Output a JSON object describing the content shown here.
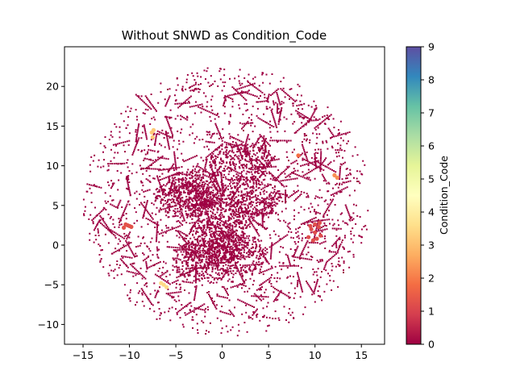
{
  "chart_data": {
    "type": "scatter",
    "title": "Without SNWD as Condition_Code",
    "xlabel": "",
    "ylabel": "",
    "xlim": [
      -17,
      17.5
    ],
    "ylim": [
      -12.5,
      25
    ],
    "x_ticks": [
      -15,
      -10,
      -5,
      0,
      5,
      10,
      15
    ],
    "y_ticks": [
      -10,
      -5,
      0,
      5,
      10,
      15,
      20
    ],
    "x_tick_labels": [
      "−15",
      "−10",
      "−5",
      "0",
      "5",
      "10",
      "15"
    ],
    "y_tick_labels": [
      "−10",
      "−5",
      "0",
      "5",
      "10",
      "15",
      "20"
    ],
    "grid": false,
    "colormap": "Spectral",
    "colorbar": {
      "label": "Condition_Code",
      "range": [
        0,
        9
      ],
      "ticks": [
        0,
        1,
        2,
        3,
        4,
        5,
        6,
        7,
        8,
        9
      ],
      "tick_labels": [
        "0",
        "1",
        "2",
        "3",
        "4",
        "5",
        "6",
        "7",
        "8",
        "9"
      ],
      "stops": [
        "#9e0142",
        "#d53e4f",
        "#f46d43",
        "#fdae61",
        "#fee08b",
        "#ffffbf",
        "#e6f598",
        "#abdda4",
        "#66c2a5",
        "#3288bd",
        "#5e4fa2"
      ]
    },
    "cloud": {
      "center": [
        0.5,
        5.5
      ],
      "radius_x": 15.5,
      "radius_y": 17,
      "dominant_condition_code": 0
    },
    "clusters": [
      {
        "x": [
          9.3,
          9.6,
          10.0,
          10.4,
          10.6,
          9.8,
          10.2,
          9.5,
          10.5,
          10.0
        ],
        "y": [
          1.0,
          2.0,
          2.6,
          2.3,
          1.2,
          0.6,
          0.8,
          2.4,
          2.8,
          1.6
        ],
        "condition_code": 1.2
      },
      {
        "x": [
          -10.6,
          -10.2,
          -9.8,
          -10.4,
          -10.0
        ],
        "y": [
          2.2,
          2.5,
          2.3,
          2.6,
          2.4
        ],
        "condition_code": 1.3
      },
      {
        "x": [
          12.1,
          12.4
        ],
        "y": [
          8.8,
          8.5
        ],
        "condition_code": 2.3
      },
      {
        "x": [
          -7.6,
          -7.4,
          -7.5
        ],
        "y": [
          14.2,
          14.5,
          13.6
        ],
        "condition_code": 3.2
      },
      {
        "x": [
          -6.6,
          -6.3,
          -6.0
        ],
        "y": [
          -4.8,
          -5.0,
          -5.3
        ],
        "condition_code": 3.5
      },
      {
        "x": [
          8.2
        ],
        "y": [
          11.3
        ],
        "condition_code": 1.8
      }
    ]
  }
}
